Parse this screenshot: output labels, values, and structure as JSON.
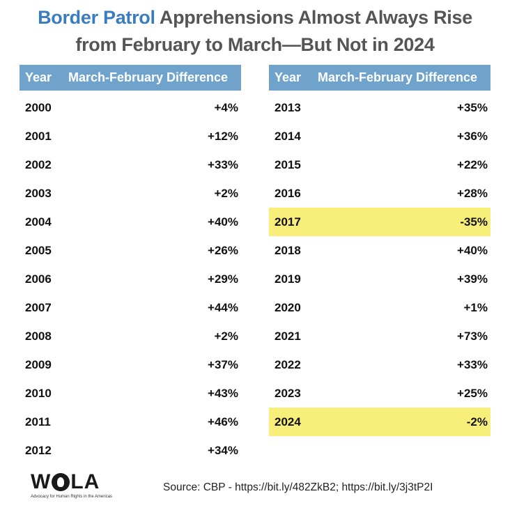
{
  "title": {
    "accent": "Border Patrol",
    "line1_rest": " Apprehensions Almost Always Rise",
    "line2": "from February to March—But Not in 2024"
  },
  "table_headers": {
    "year": "Year",
    "diff": "March-February Difference"
  },
  "colors": {
    "header_bg": "#6fa3cc",
    "title_accent": "#3a7dbf",
    "highlight": "#f8ee7a",
    "title_text": "#555555"
  },
  "chart_data": {
    "type": "table",
    "columns": [
      "Year",
      "March-February Difference"
    ],
    "rows": [
      {
        "year": "2000",
        "diff": "+4%"
      },
      {
        "year": "2001",
        "diff": "+12%"
      },
      {
        "year": "2002",
        "diff": "+33%"
      },
      {
        "year": "2003",
        "diff": "+2%"
      },
      {
        "year": "2004",
        "diff": "+40%"
      },
      {
        "year": "2005",
        "diff": "+26%"
      },
      {
        "year": "2006",
        "diff": "+29%"
      },
      {
        "year": "2007",
        "diff": "+44%"
      },
      {
        "year": "2008",
        "diff": "+2%"
      },
      {
        "year": "2009",
        "diff": "+37%"
      },
      {
        "year": "2010",
        "diff": "+43%"
      },
      {
        "year": "2011",
        "diff": "+46%"
      },
      {
        "year": "2012",
        "diff": "+34%"
      },
      {
        "year": "2013",
        "diff": "+35%"
      },
      {
        "year": "2014",
        "diff": "+36%"
      },
      {
        "year": "2015",
        "diff": "+22%"
      },
      {
        "year": "2016",
        "diff": "+28%"
      },
      {
        "year": "2017",
        "diff": "-35%",
        "highlight": true
      },
      {
        "year": "2018",
        "diff": "+40%"
      },
      {
        "year": "2019",
        "diff": "+39%"
      },
      {
        "year": "2020",
        "diff": "+1%"
      },
      {
        "year": "2021",
        "diff": "+73%"
      },
      {
        "year": "2022",
        "diff": "+33%"
      },
      {
        "year": "2023",
        "diff": "+25%"
      },
      {
        "year": "2024",
        "diff": "-2%",
        "highlight": true
      }
    ]
  },
  "logo": {
    "text_w": "W",
    "text_la": "LA",
    "tagline": "Advocacy for Human Rights in the Americas"
  },
  "source": "Source: CBP - https://bit.ly/482ZkB2; https://bit.ly/3j3tP2I"
}
